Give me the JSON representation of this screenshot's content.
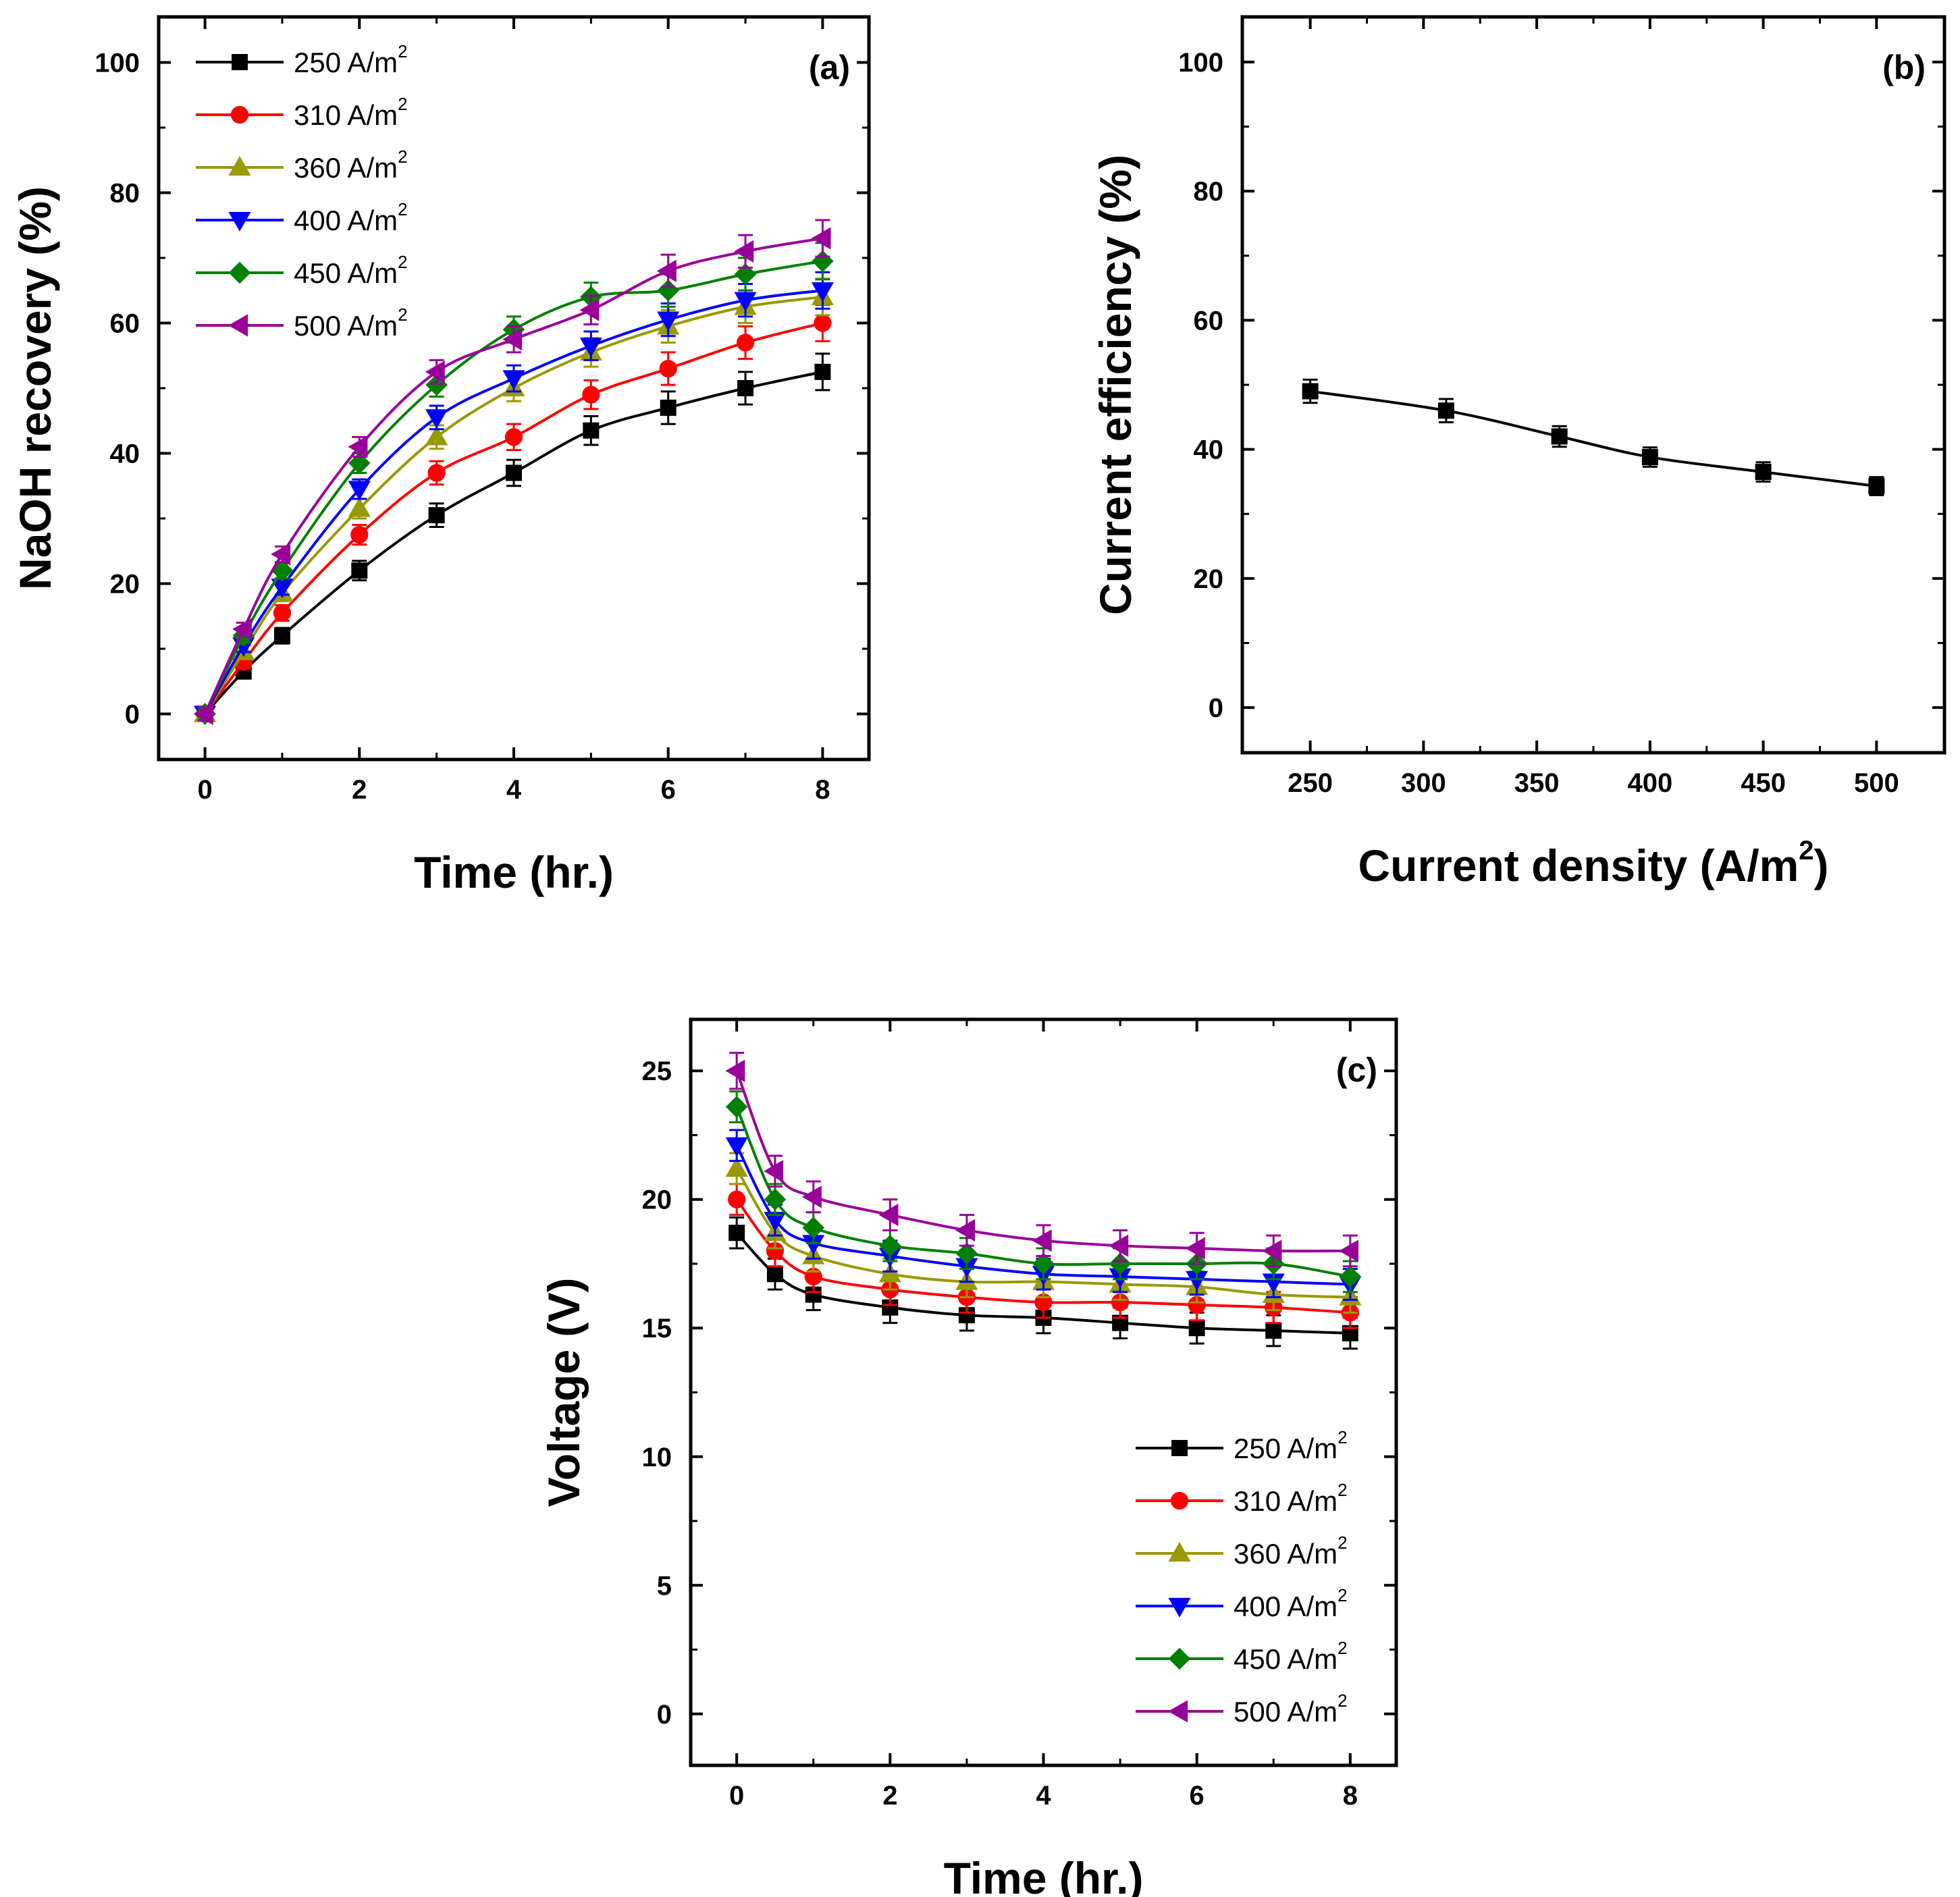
{
  "chart_data": [
    {
      "panel": "(a)",
      "type": "line",
      "xlabel": "Time (hr.)",
      "ylabel": "NaOH recovery (%)",
      "xlim": [
        -0.6,
        8.6
      ],
      "ylim": [
        -7,
        107
      ],
      "xticks": [
        0,
        2,
        4,
        6,
        8
      ],
      "yticks": [
        0,
        20,
        40,
        60,
        80,
        100
      ],
      "legend_position": "top-left",
      "x": [
        0,
        0.5,
        1,
        2,
        3,
        4,
        5,
        6,
        7,
        8
      ],
      "series": [
        {
          "name": "250 A/m",
          "sup": "2",
          "color": "#000000",
          "marker": "square",
          "values": [
            0,
            6.5,
            12,
            22,
            30.5,
            37,
            43.5,
            47,
            50,
            52.5
          ],
          "errors": [
            1,
            1,
            1.2,
            1.5,
            1.8,
            2,
            2.2,
            2.5,
            2.5,
            2.8
          ]
        },
        {
          "name": "310 A/m",
          "sup": "2",
          "color": "#ff0000",
          "marker": "circle",
          "values": [
            0,
            8,
            15.5,
            27.5,
            37,
            42.5,
            49,
            53,
            57,
            60
          ],
          "errors": [
            1,
            1,
            1.2,
            1.5,
            1.8,
            2,
            2.2,
            2.5,
            2.5,
            2.8
          ]
        },
        {
          "name": "360 A/m",
          "sup": "2",
          "color": "#999900",
          "marker": "triangle-up",
          "values": [
            0,
            9.5,
            18.5,
            31.5,
            42.5,
            50,
            55.5,
            59.5,
            62.5,
            64
          ],
          "errors": [
            1,
            1,
            1.2,
            1.5,
            1.8,
            2,
            2.2,
            2.5,
            2.5,
            2.8
          ]
        },
        {
          "name": "400 A/m",
          "sup": "2",
          "color": "#0000ff",
          "marker": "triangle-down",
          "values": [
            0,
            10.5,
            19.5,
            34.5,
            45.5,
            51.5,
            56.5,
            60.5,
            63.5,
            65
          ],
          "errors": [
            1,
            1,
            1.2,
            1.5,
            1.8,
            2,
            2.2,
            2.5,
            2.5,
            2.8
          ]
        },
        {
          "name": "450 A/m",
          "sup": "2",
          "color": "#008000",
          "marker": "diamond",
          "values": [
            0,
            12,
            22,
            38.5,
            50.5,
            59,
            64,
            65,
            67.5,
            69.5
          ],
          "errors": [
            1,
            1,
            1.2,
            1.5,
            1.8,
            2,
            2.2,
            2.5,
            2.5,
            2.8
          ]
        },
        {
          "name": "500 A/m",
          "sup": "2",
          "color": "#990099",
          "marker": "triangle-left",
          "values": [
            0,
            13,
            24.5,
            41,
            52.5,
            57.5,
            62,
            68,
            71,
            73
          ],
          "errors": [
            1,
            1,
            1.2,
            1.5,
            1.8,
            2,
            2.2,
            2.5,
            2.5,
            2.8
          ]
        }
      ]
    },
    {
      "panel": "(b)",
      "type": "line",
      "xlabel": "Current density (A/m",
      "xlabel_sup": "2",
      "xlabel_end": ")",
      "ylabel": "Current efficiency (%)",
      "xlim": [
        220,
        530
      ],
      "ylim": [
        -7,
        107
      ],
      "xticks": [
        250,
        300,
        350,
        400,
        450,
        500
      ],
      "yticks": [
        0,
        20,
        40,
        60,
        80,
        100
      ],
      "x": [
        250,
        310,
        360,
        400,
        450,
        500
      ],
      "series": [
        {
          "name": "Current efficiency",
          "color": "#000000",
          "marker": "square",
          "values": [
            49,
            46,
            42,
            38.8,
            36.5,
            34.3
          ],
          "errors": [
            1.8,
            1.8,
            1.6,
            1.5,
            1.5,
            1.4
          ]
        }
      ]
    },
    {
      "panel": "(c)",
      "type": "line",
      "xlabel": "Time (hr.)",
      "ylabel": "Voltage (V)",
      "xlim": [
        -0.6,
        8.6
      ],
      "ylim": [
        -2,
        27
      ],
      "xticks": [
        0,
        2,
        4,
        6,
        8
      ],
      "yticks": [
        0,
        5,
        10,
        15,
        20,
        25
      ],
      "legend_position": "bottom-right",
      "x": [
        0,
        0.5,
        1,
        2,
        3,
        4,
        5,
        6,
        7,
        8
      ],
      "series": [
        {
          "name": "250 A/m",
          "sup": "2",
          "color": "#000000",
          "marker": "square",
          "values": [
            18.7,
            17.1,
            16.3,
            15.8,
            15.5,
            15.4,
            15.2,
            15.0,
            14.9,
            14.8
          ],
          "errors": [
            0.6,
            0.6,
            0.6,
            0.6,
            0.6,
            0.6,
            0.6,
            0.6,
            0.6,
            0.6
          ]
        },
        {
          "name": "310 A/m",
          "sup": "2",
          "color": "#ff0000",
          "marker": "circle",
          "values": [
            20.0,
            18.0,
            17.0,
            16.5,
            16.2,
            16.0,
            16.0,
            15.9,
            15.8,
            15.6
          ],
          "errors": [
            0.6,
            0.6,
            0.6,
            0.6,
            0.6,
            0.6,
            0.6,
            0.6,
            0.6,
            0.6
          ]
        },
        {
          "name": "360 A/m",
          "sup": "2",
          "color": "#999900",
          "marker": "triangle-up",
          "values": [
            21.2,
            18.7,
            17.8,
            17.1,
            16.8,
            16.8,
            16.7,
            16.6,
            16.3,
            16.2
          ],
          "errors": [
            0.6,
            0.6,
            0.6,
            0.6,
            0.6,
            0.6,
            0.6,
            0.6,
            0.6,
            0.6
          ]
        },
        {
          "name": "400 A/m",
          "sup": "2",
          "color": "#0000ff",
          "marker": "triangle-down",
          "values": [
            22.1,
            19.2,
            18.3,
            17.8,
            17.4,
            17.1,
            17.0,
            16.9,
            16.8,
            16.7
          ],
          "errors": [
            0.6,
            0.6,
            0.6,
            0.6,
            0.6,
            0.6,
            0.6,
            0.6,
            0.6,
            0.6
          ]
        },
        {
          "name": "450 A/m",
          "sup": "2",
          "color": "#008000",
          "marker": "diamond",
          "values": [
            23.6,
            20.0,
            18.9,
            18.2,
            17.9,
            17.5,
            17.5,
            17.5,
            17.5,
            17.0
          ],
          "errors": [
            0.6,
            0.6,
            0.6,
            0.6,
            0.6,
            0.6,
            0.6,
            0.6,
            0.6,
            0.6
          ]
        },
        {
          "name": "500 A/m",
          "sup": "2",
          "color": "#990099",
          "marker": "triangle-left",
          "values": [
            25.0,
            21.1,
            20.1,
            19.4,
            18.8,
            18.4,
            18.2,
            18.1,
            18.0,
            18.0
          ],
          "errors": [
            0.7,
            0.6,
            0.6,
            0.6,
            0.6,
            0.6,
            0.6,
            0.6,
            0.6,
            0.6
          ]
        }
      ]
    }
  ]
}
